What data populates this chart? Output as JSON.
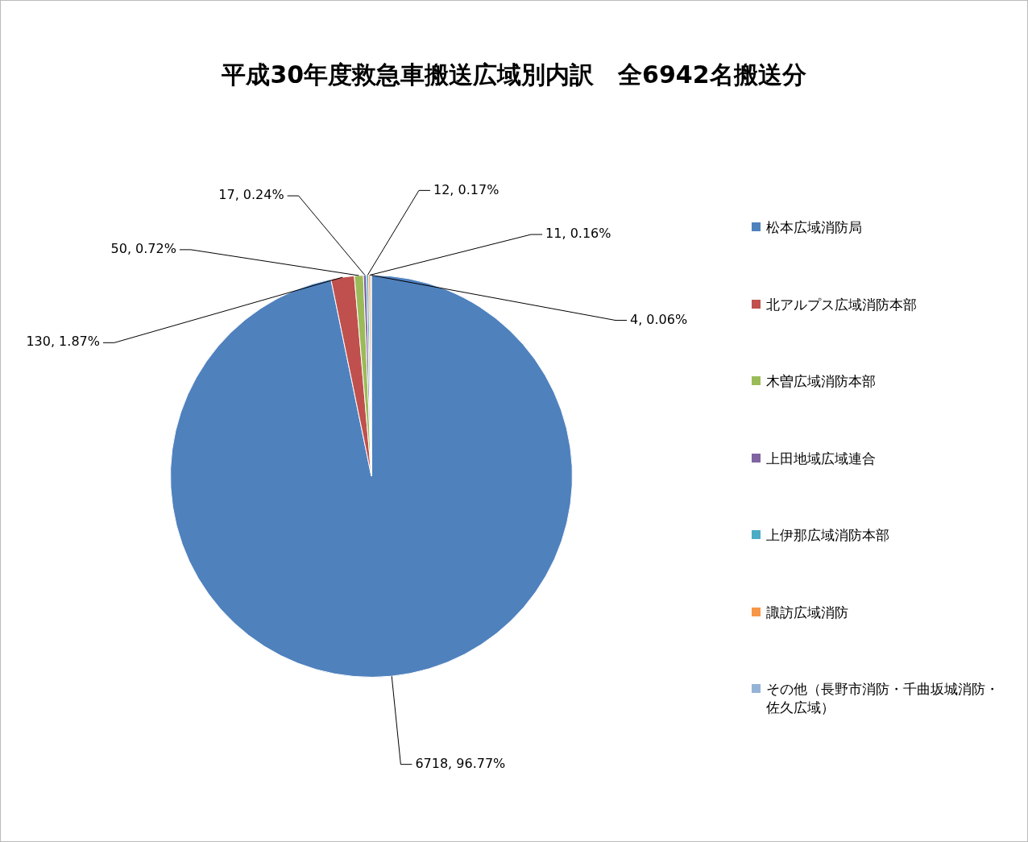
{
  "chart_data": {
    "type": "pie",
    "title": "平成30年度救急車搬送広域別内訳　全6942名搬送分",
    "categories": [
      "松本広域消防局",
      "北アルプス広域消防本部",
      "木曽広域消防本部",
      "上田地域広域連合",
      "上伊那広域消防本部",
      "諏訪広域消防",
      "その他（長野市消防・千曲坂城消防・佐久広域）"
    ],
    "values": [
      6718,
      130,
      50,
      17,
      12,
      11,
      4
    ],
    "colors": [
      "#4f81bd",
      "#c0504d",
      "#9bbb59",
      "#8064a2",
      "#4bacc6",
      "#f79646",
      "#95b3d7"
    ],
    "value_labels": [
      "6718, 96.77%",
      "130, 1.87%",
      "50, 0.72%",
      "17, 0.24%",
      "12, 0.17%",
      "11, 0.16%",
      "4, 0.06%"
    ],
    "legend": "right"
  }
}
